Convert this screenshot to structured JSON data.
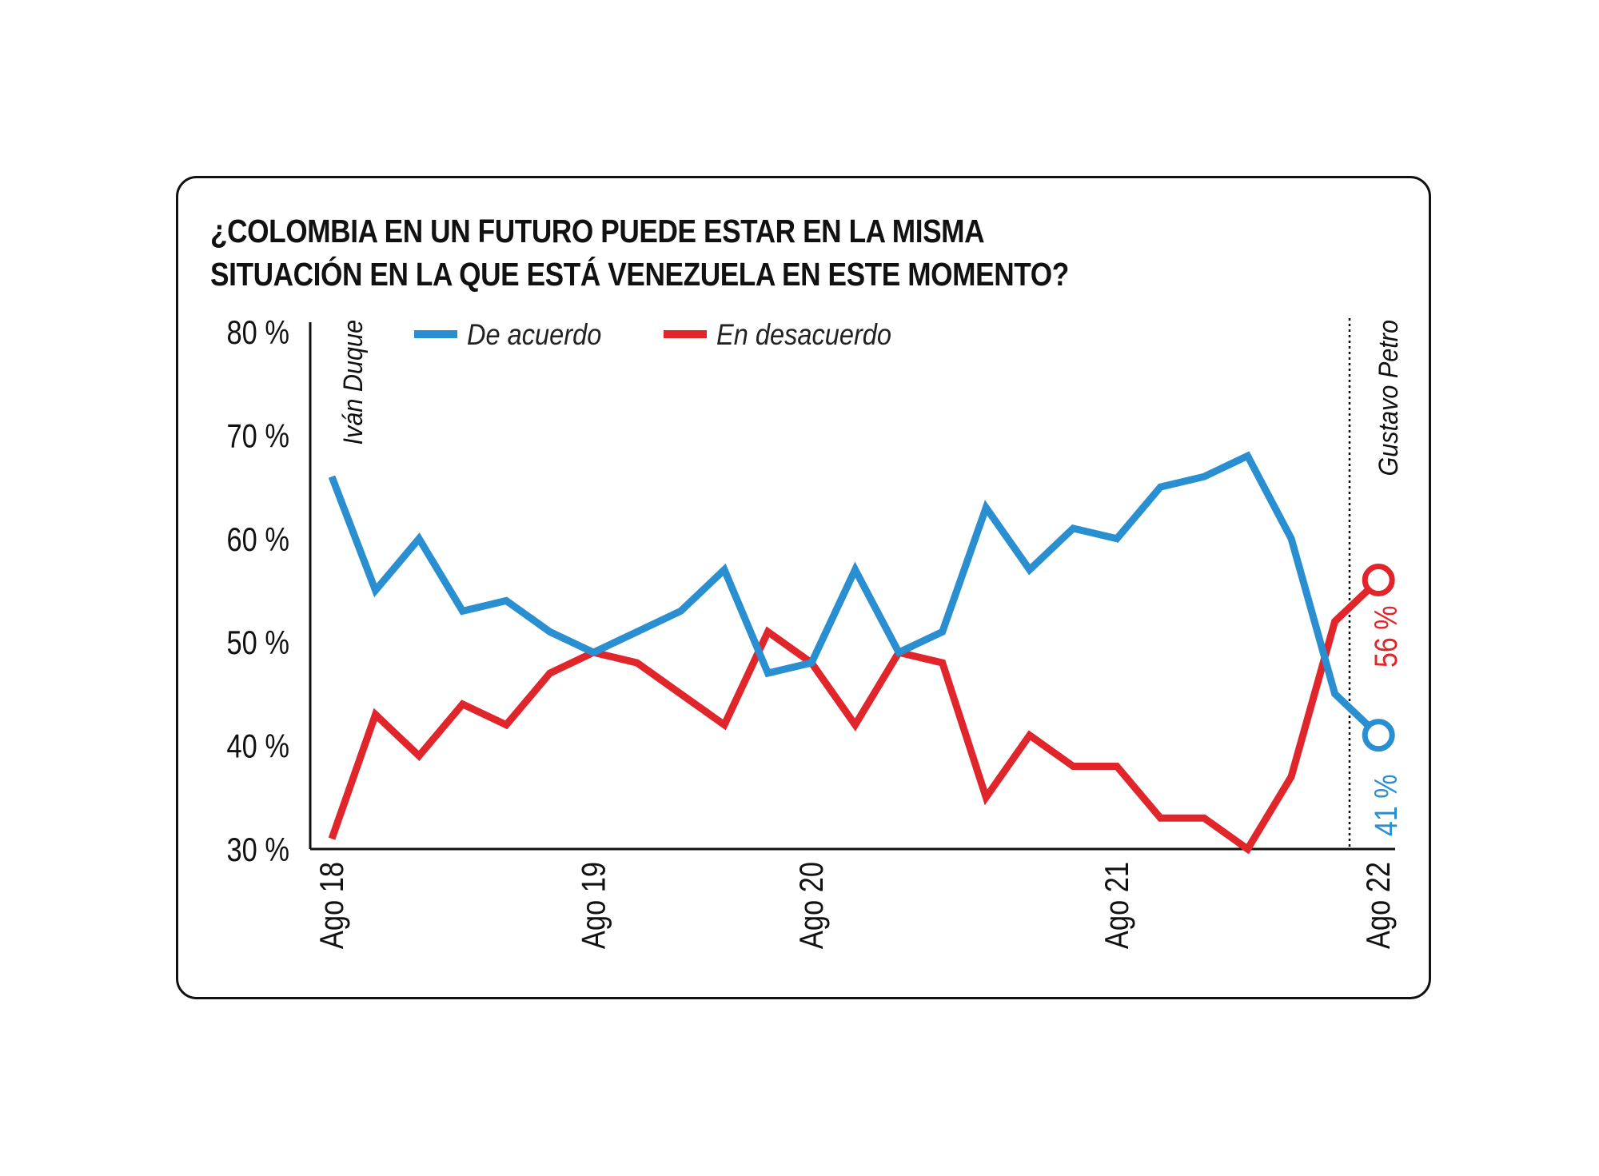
{
  "chart_data": {
    "type": "line",
    "title_lines": [
      "¿COLOMBIA EN UN FUTURO PUEDE ESTAR EN LA MISMA",
      "SITUACIÓN EN LA QUE ESTÁ VENEZUELA EN ESTE MOMENTO?"
    ],
    "y_ticks": [
      {
        "value": 80,
        "label": "80 %"
      },
      {
        "value": 70,
        "label": "70 %"
      },
      {
        "value": 60,
        "label": "60 %"
      },
      {
        "value": 50,
        "label": "50 %"
      },
      {
        "value": 40,
        "label": "40 %"
      },
      {
        "value": 30,
        "label": "30 %"
      }
    ],
    "ylim": [
      30,
      80
    ],
    "xlim": [
      0,
      24.5
    ],
    "x_ticks": [
      {
        "x": 0,
        "label": "Ago 18"
      },
      {
        "x": 6,
        "label": "Ago 19"
      },
      {
        "x": 11,
        "label": "Ago 20"
      },
      {
        "x": 18,
        "label": "Ago 21"
      },
      {
        "x": 24,
        "label": "Ago 22"
      }
    ],
    "series": [
      {
        "name": "De acuerdo",
        "color": "#2a8fd0",
        "x": [
          0,
          1,
          2,
          3,
          4,
          5,
          6,
          7,
          8,
          9,
          10,
          11,
          12,
          13,
          14,
          15,
          16,
          17,
          18,
          19,
          20,
          21,
          22,
          23,
          24
        ],
        "values": [
          66,
          55,
          60,
          53,
          54,
          51,
          49,
          51,
          53,
          57,
          47,
          48,
          57,
          49,
          51,
          63,
          57,
          61,
          60,
          65,
          66,
          68,
          60,
          45,
          41
        ],
        "end_label": "41 %"
      },
      {
        "name": "En desacuerdo",
        "color": "#e0252b",
        "x": [
          0,
          1,
          2,
          3,
          4,
          5,
          6,
          7,
          8,
          9,
          10,
          11,
          12,
          13,
          14,
          15,
          16,
          17,
          18,
          19,
          20,
          21,
          22,
          23,
          24
        ],
        "values": [
          31,
          43,
          39,
          44,
          42,
          47,
          49,
          48,
          45,
          42,
          51,
          48,
          42,
          49,
          48,
          35,
          41,
          38,
          38,
          33,
          33,
          30,
          37,
          52,
          56
        ],
        "end_label": "56 %"
      }
    ],
    "annotations": [
      {
        "text": "Iván Duque",
        "x": 0
      },
      {
        "text": "Gustavo Petro",
        "x": 23.3
      }
    ],
    "legend_position": "top"
  }
}
